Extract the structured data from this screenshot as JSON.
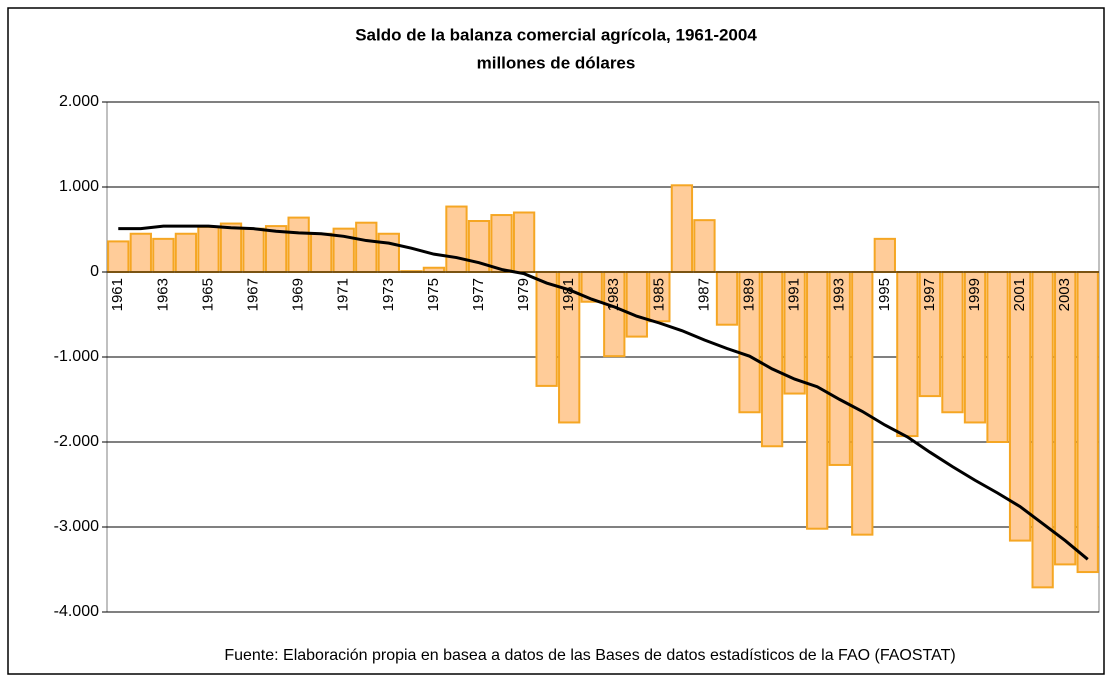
{
  "chart_data": {
    "type": "bar+line",
    "title": "Saldo de la balanza comercial agrícola, 1961-2004",
    "subtitle": "millones de dólares",
    "note": "Fuente: Elaboración propia en basea a datos de las Bases de datos estadísticos de la FAO (FAOSTAT)",
    "categories": [
      "1961",
      null,
      "1963",
      null,
      "1965",
      null,
      "1967",
      null,
      "1969",
      null,
      "1971",
      null,
      "1973",
      null,
      "1975",
      null,
      "1977",
      null,
      "1979",
      null,
      "1981",
      null,
      "1983",
      null,
      "1985",
      null,
      "1987",
      null,
      "1989",
      null,
      "1991",
      null,
      "1993",
      null,
      "1995",
      null,
      "1997",
      null,
      "1999",
      null,
      "2001",
      null,
      "2003",
      null
    ],
    "series": [
      {
        "type": "bar",
        "color": "#ffcc99",
        "edge_color": "#f5a623",
        "values": [
          360,
          450,
          390,
          450,
          530,
          570,
          510,
          540,
          640,
          450,
          510,
          580,
          450,
          10,
          50,
          770,
          600,
          670,
          700,
          -1340,
          -1770,
          -350,
          -990,
          -760,
          -580,
          1020,
          610,
          -620,
          -1650,
          -2050,
          -1430,
          -3020,
          -2270,
          -3090,
          390,
          -1930,
          -1460,
          -1650,
          -1770,
          -2000,
          -3160,
          -3710,
          -3440,
          -3530
        ]
      },
      {
        "type": "line",
        "color": "#000000",
        "values": [
          510,
          510,
          540,
          540,
          540,
          520,
          510,
          480,
          460,
          450,
          420,
          370,
          340,
          280,
          210,
          170,
          110,
          30,
          -20,
          -130,
          -210,
          -320,
          -410,
          -520,
          -600,
          -690,
          -800,
          -900,
          -990,
          -1140,
          -1260,
          -1350,
          -1500,
          -1640,
          -1800,
          -1940,
          -2120,
          -2290,
          -2450,
          -2600,
          -2760,
          -2960,
          -3160,
          -3380
        ]
      }
    ],
    "ylim": [
      -4000,
      2000
    ],
    "yticks": [
      {
        "value": -4000,
        "label": "-4.000"
      },
      {
        "value": -3000,
        "label": "-3.000"
      },
      {
        "value": -2000,
        "label": "-2.000"
      },
      {
        "value": -1000,
        "label": "-1.000"
      },
      0,
      {
        "value": 1000,
        "label": "1.000"
      },
      {
        "value": 2000,
        "label": "2.000"
      }
    ],
    "grid": true
  }
}
